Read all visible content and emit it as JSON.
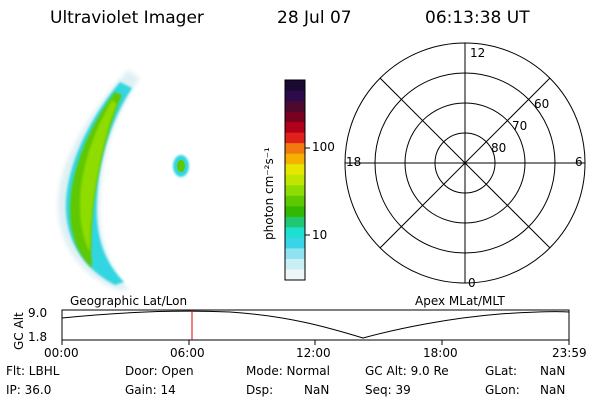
{
  "header": {
    "instrument": "Ultraviolet Imager",
    "date": "28 Jul 07",
    "time": "06:13:38 UT"
  },
  "colorbar": {
    "unit_label": "photon cm⁻²s⁻¹",
    "ticks": [
      "100",
      "10"
    ],
    "colors": [
      "#1a0a33",
      "#2b0b4a",
      "#4b0a2e",
      "#7a0020",
      "#b0001a",
      "#e0201a",
      "#f07a10",
      "#f5b000",
      "#e6e600",
      "#bfe600",
      "#8fdc00",
      "#5ec800",
      "#33b800",
      "#1fc870",
      "#1ee0d0",
      "#3ad4e8",
      "#8fe2ef",
      "#c9eef3",
      "#eef6f8"
    ]
  },
  "polar_grid": {
    "mlt_labels": [
      "12",
      "18",
      "6",
      "0"
    ],
    "lat_labels": [
      "60",
      "70",
      "80"
    ]
  },
  "timeline": {
    "left_label": "Geographic Lat/Lon",
    "right_label": "Apex MLat/MLT",
    "axis_title": "GC Alt",
    "y_ticks": [
      "9.0",
      "1.8"
    ],
    "x_ticks": [
      "00:00",
      "06:00",
      "12:00",
      "18:00",
      "23:59"
    ],
    "current_marker_color": "#e00000"
  },
  "status": {
    "flt": "Flt: LBHL",
    "ip": "IP: 36.0",
    "door": "Door: Open",
    "gain": "Gain: 14",
    "mode": "Mode: Normal",
    "dsp_label": "Dsp:",
    "dsp_value": "NaN",
    "gc_alt": "GC Alt: 9.0 Re",
    "seq": "Seq: 39",
    "glat_label": "GLat:",
    "glat_value": "NaN",
    "glon_label": "GLon:",
    "glon_value": "NaN"
  }
}
